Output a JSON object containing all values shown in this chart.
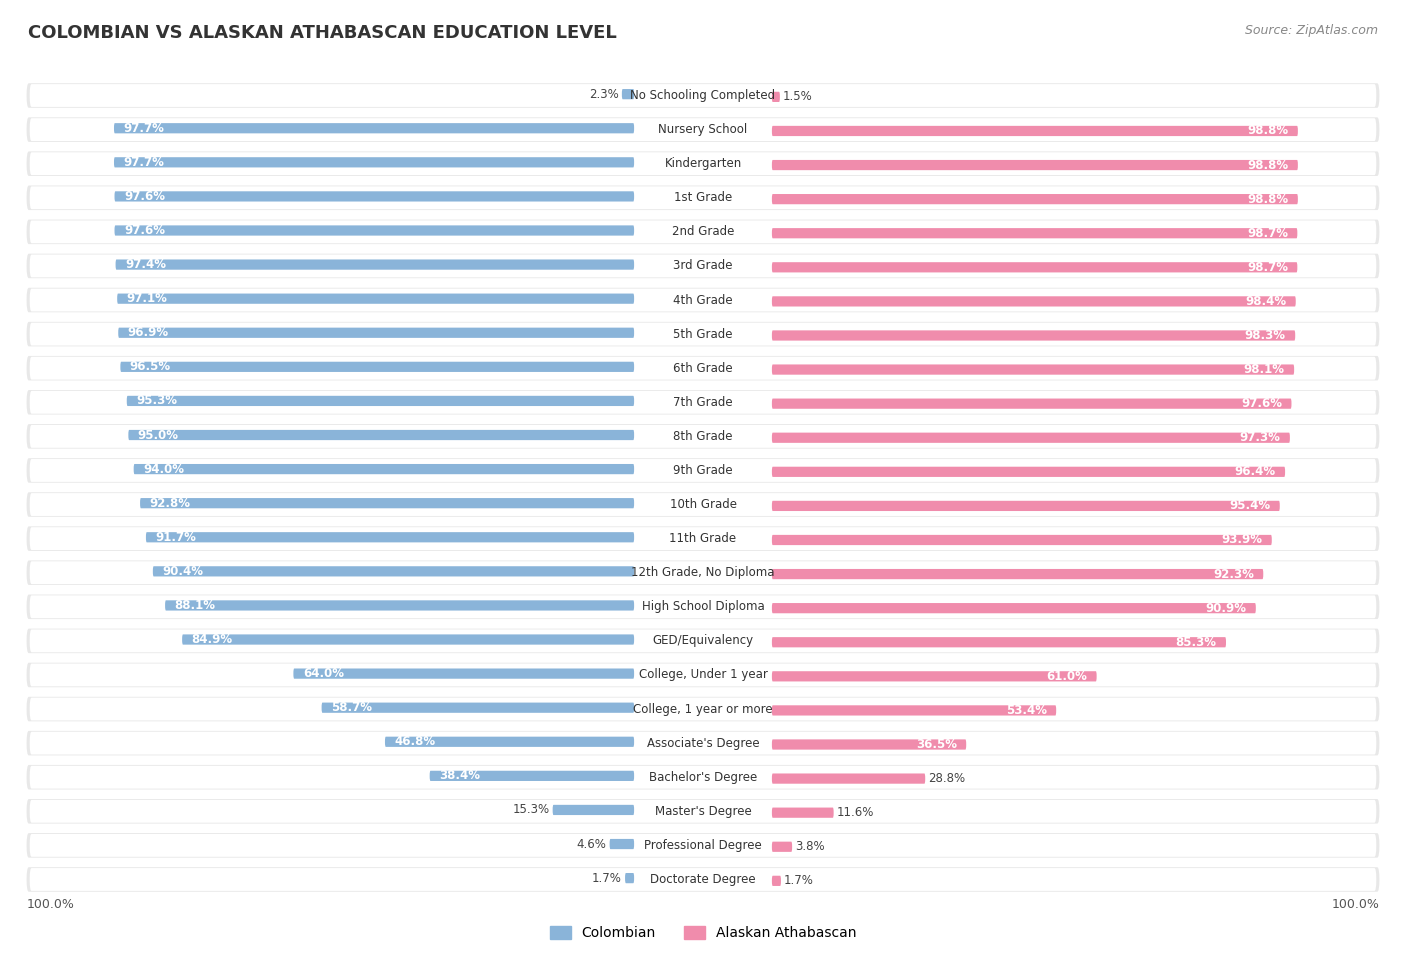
{
  "title": "COLOMBIAN VS ALASKAN ATHABASCAN EDUCATION LEVEL",
  "source": "Source: ZipAtlas.com",
  "categories": [
    "No Schooling Completed",
    "Nursery School",
    "Kindergarten",
    "1st Grade",
    "2nd Grade",
    "3rd Grade",
    "4th Grade",
    "5th Grade",
    "6th Grade",
    "7th Grade",
    "8th Grade",
    "9th Grade",
    "10th Grade",
    "11th Grade",
    "12th Grade, No Diploma",
    "High School Diploma",
    "GED/Equivalency",
    "College, Under 1 year",
    "College, 1 year or more",
    "Associate's Degree",
    "Bachelor's Degree",
    "Master's Degree",
    "Professional Degree",
    "Doctorate Degree"
  ],
  "colombian": [
    2.3,
    97.7,
    97.7,
    97.6,
    97.6,
    97.4,
    97.1,
    96.9,
    96.5,
    95.3,
    95.0,
    94.0,
    92.8,
    91.7,
    90.4,
    88.1,
    84.9,
    64.0,
    58.7,
    46.8,
    38.4,
    15.3,
    4.6,
    1.7
  ],
  "alaskan": [
    1.5,
    98.8,
    98.8,
    98.8,
    98.7,
    98.7,
    98.4,
    98.3,
    98.1,
    97.6,
    97.3,
    96.4,
    95.4,
    93.9,
    92.3,
    90.9,
    85.3,
    61.0,
    53.4,
    36.5,
    28.8,
    11.6,
    3.8,
    1.7
  ],
  "colombian_color": "#8ab4d9",
  "alaskan_color": "#f08cac",
  "row_bg_color": "#ebebeb",
  "row_bg_inner": "#f5f5f5",
  "axis_label_left": "100.0%",
  "axis_label_right": "100.0%",
  "legend_colombian": "Colombian",
  "legend_alaskan": "Alaskan Athabascan",
  "value_fontsize": 8.5,
  "category_fontsize": 8.5,
  "title_fontsize": 13
}
